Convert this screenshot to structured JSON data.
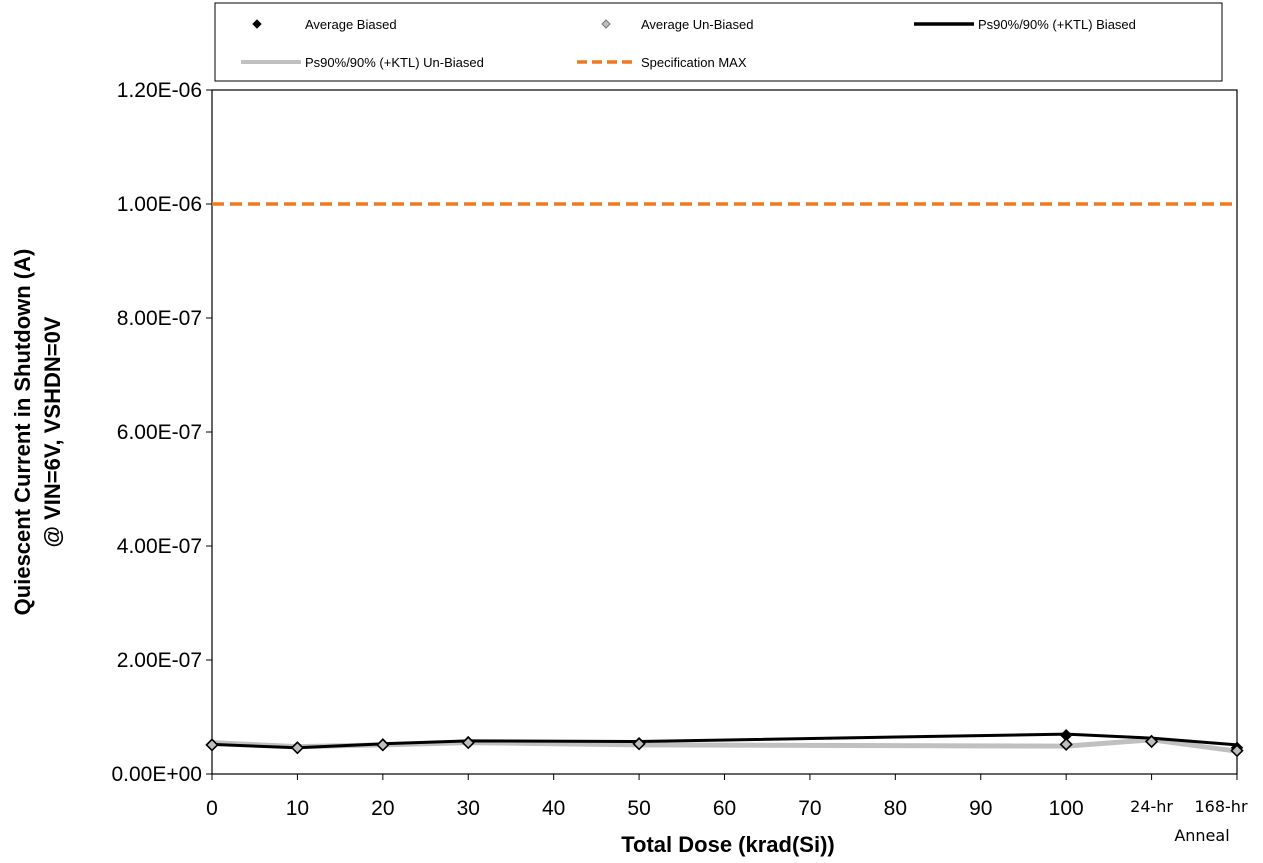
{
  "chart_data": {
    "type": "line",
    "xlabel": "Total Dose (krad(Si))",
    "ylabel_lines": [
      "Quiescent Current in Shutdown (A)",
      "@ VIN=6V, VSHDN=0V"
    ],
    "categories": [
      "0",
      "10",
      "20",
      "30",
      "40",
      "50",
      "60",
      "70",
      "80",
      "90",
      "100",
      "24-hr",
      "168-hr"
    ],
    "x_annotation": "Anneal",
    "y_ticks": [
      "0.00E+00",
      "2.00E-07",
      "4.00E-07",
      "6.00E-07",
      "8.00E-07",
      "1.00E-06",
      "1.20E-06"
    ],
    "ylim": [
      0,
      1.2e-06
    ],
    "legend_position": "top",
    "series": [
      {
        "name": "Average Biased",
        "kind": "marker",
        "marker": "diamond",
        "color": "#000000",
        "x": [
          "0",
          "10",
          "20",
          "30",
          "50",
          "100",
          "24-hr",
          "168-hr"
        ],
        "values": [
          5.1e-08,
          4.6e-08,
          5.2e-08,
          5.6e-08,
          5.4e-08,
          6.8e-08,
          5.8e-08,
          4.6e-08
        ]
      },
      {
        "name": "Average Un-Biased",
        "kind": "marker",
        "marker": "diamond",
        "color": "#9a9a9a",
        "x": [
          "0",
          "10",
          "20",
          "30",
          "50",
          "100",
          "24-hr",
          "168-hr"
        ],
        "values": [
          5.1e-08,
          4.6e-08,
          5.1e-08,
          5.5e-08,
          5.3e-08,
          5.2e-08,
          5.7e-08,
          4.1e-08
        ]
      },
      {
        "name": "Ps90%/90% (+KTL) Biased",
        "kind": "line",
        "color": "#000000",
        "x": [
          "0",
          "10",
          "20",
          "30",
          "50",
          "100",
          "24-hr",
          "168-hr"
        ],
        "values": [
          5.2e-08,
          4.6e-08,
          5.3e-08,
          5.8e-08,
          5.7e-08,
          7e-08,
          6.3e-08,
          5.1e-08
        ]
      },
      {
        "name": "Ps90%/90% (+KTL) Un-Biased",
        "kind": "line",
        "color": "#c0c0c0",
        "x": [
          "0",
          "10",
          "20",
          "30",
          "50",
          "100",
          "24-hr",
          "168-hr"
        ],
        "values": [
          5.5e-08,
          4.8e-08,
          5.1e-08,
          5.5e-08,
          5.1e-08,
          4.9e-08,
          6e-08,
          4e-08
        ]
      },
      {
        "name": "Specification MAX",
        "kind": "dashed",
        "color": "#f07820",
        "x": [
          "0",
          "168-hr"
        ],
        "values": [
          1e-06,
          1e-06
        ]
      }
    ]
  }
}
